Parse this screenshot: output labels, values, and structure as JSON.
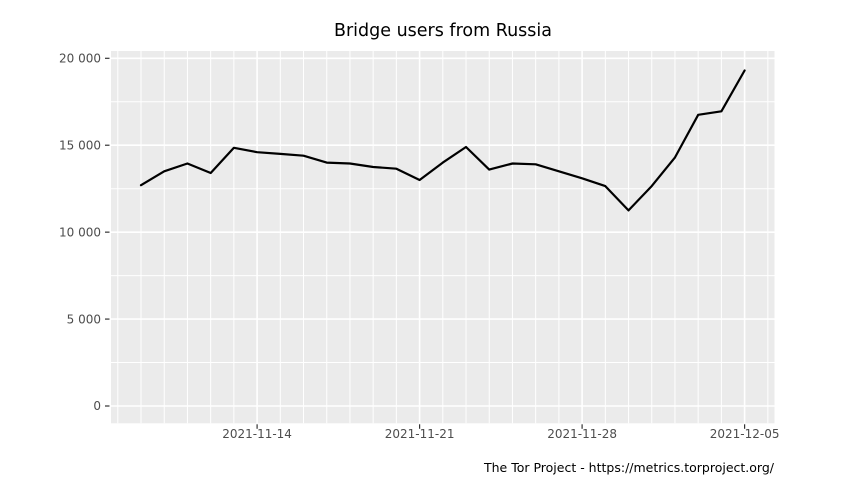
{
  "title": "Bridge users from Russia",
  "footer": "The Tor Project - https://metrics.torproject.org/",
  "colors": {
    "figure_background": "#ffffff",
    "panel_background": "#ebebeb",
    "grid": "#ffffff",
    "line": "#000000",
    "axis_text": "#4d4d4d",
    "tick_mark": "#333333",
    "title_text": "#000000",
    "footer_text": "#000000"
  },
  "chart_data": {
    "type": "line",
    "title": "Bridge users from Russia",
    "xlabel": "",
    "ylabel": "",
    "legend": "none",
    "grid": "on",
    "panel_style": "ggplot gray panel with white gridlines",
    "x": [
      "2021-11-09",
      "2021-11-10",
      "2021-11-11",
      "2021-11-12",
      "2021-11-13",
      "2021-11-14",
      "2021-11-15",
      "2021-11-16",
      "2021-11-17",
      "2021-11-18",
      "2021-11-19",
      "2021-11-20",
      "2021-11-21",
      "2021-11-22",
      "2021-11-23",
      "2021-11-24",
      "2021-11-25",
      "2021-11-26",
      "2021-11-27",
      "2021-11-28",
      "2021-11-29",
      "2021-11-30",
      "2021-12-01",
      "2021-12-02",
      "2021-12-03",
      "2021-12-04",
      "2021-12-05"
    ],
    "values": [
      12700,
      13500,
      13950,
      13400,
      14850,
      14600,
      14500,
      14400,
      14000,
      13950,
      13750,
      13650,
      13000,
      14000,
      14900,
      13600,
      13950,
      13900,
      13500,
      13100,
      12650,
      11250,
      12650,
      14300,
      16750,
      16950,
      19300
    ],
    "ylim": [
      0,
      20000
    ],
    "y_axis": {
      "major_ticks": [
        0,
        5000,
        10000,
        15000,
        20000
      ],
      "major_tick_labels": [
        "0",
        "5 000",
        "10 000",
        "15 000",
        "20 000"
      ],
      "minor_ticks": [
        2500,
        7500,
        12500,
        17500
      ]
    },
    "x_axis": {
      "major_tick_dates": [
        "2021-11-14",
        "2021-11-21",
        "2021-11-28",
        "2021-12-05"
      ],
      "major_tick_labels": [
        "2021-11-14",
        "2021-11-21",
        "2021-11-28",
        "2021-12-05"
      ],
      "minor_grid": "daily",
      "grid_date_range": [
        "2021-11-08",
        "2021-12-06"
      ]
    }
  }
}
